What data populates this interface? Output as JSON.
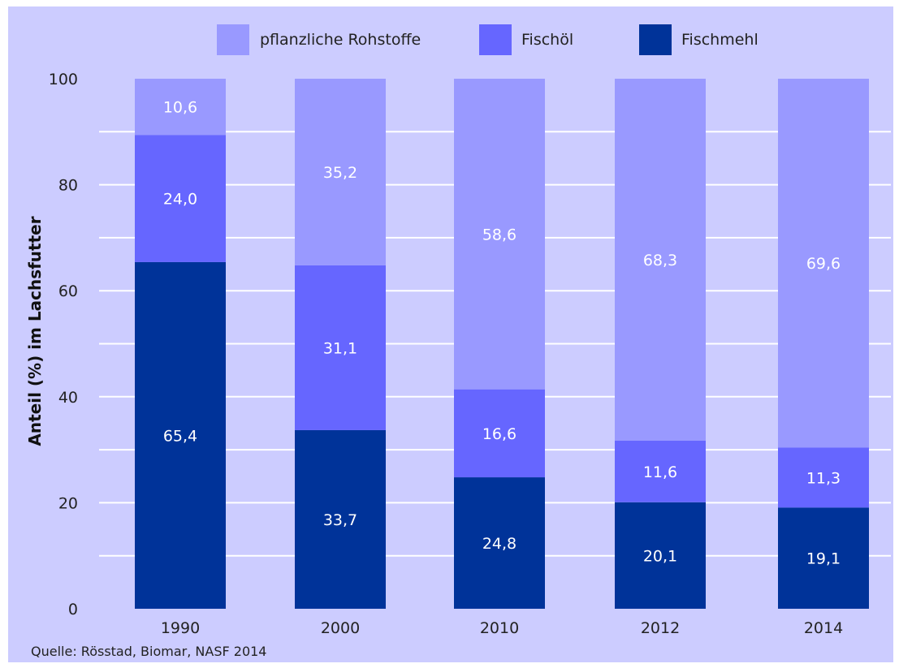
{
  "chart_data": {
    "type": "bar",
    "stacked": true,
    "categories": [
      "1990",
      "2000",
      "2010",
      "2012",
      "2014"
    ],
    "series": [
      {
        "name": "Fischmehl",
        "color": "#003399",
        "values": [
          65.4,
          33.7,
          24.8,
          20.1,
          19.1
        ],
        "labels": [
          "65,4",
          "33,7",
          "24,8",
          "20,1",
          "19,1"
        ]
      },
      {
        "name": "Fischöl",
        "color": "#6666ff",
        "values": [
          24.0,
          31.1,
          16.6,
          11.6,
          11.3
        ],
        "labels": [
          "24,0",
          "31,1",
          "16,6",
          "11,6",
          "11,3"
        ]
      },
      {
        "name": "pflanzliche Rohstoffe",
        "color": "#9999ff",
        "values": [
          10.6,
          35.2,
          58.6,
          68.3,
          69.6
        ],
        "labels": [
          "10,6",
          "35,2",
          "58,6",
          "68,3",
          "69,6"
        ]
      }
    ],
    "legend": {
      "placement": "top",
      "order": [
        "pflanzliche Rohstoffe",
        "Fischöl",
        "Fischmehl"
      ]
    },
    "ylabel": "Anteil (%) im Lachsfutter",
    "xlabel": "",
    "ylim": [
      0,
      100
    ],
    "yticks": [
      0,
      20,
      40,
      60,
      80,
      100
    ],
    "grid": true,
    "background_color": "#ccccff",
    "grid_color": "#ffffff",
    "source": "Quelle: Rösstad, Biomar, NASF 2014"
  }
}
